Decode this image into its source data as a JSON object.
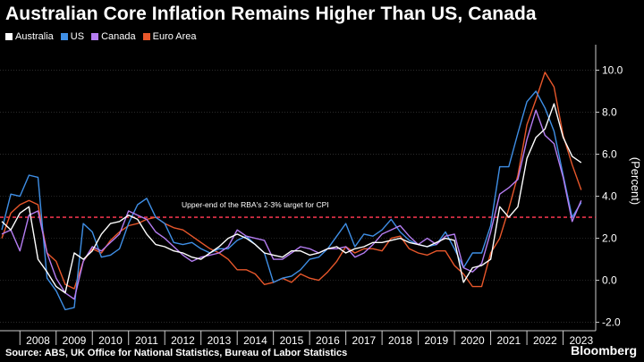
{
  "title": "Australian Core Inflation Remains Higher Than US, Canada",
  "source": "Source: ABS, UK Office for National Statistics, Bureau of Labor Statistics",
  "brand": "Bloomberg",
  "colors": {
    "background": "#000000",
    "australia": "#ffffff",
    "us": "#3f8fe6",
    "canada": "#b57df2",
    "euro_area": "#e8572b",
    "target_line": "#e8334a",
    "grid": "#3a3a3a"
  },
  "chart_data": {
    "type": "line",
    "ylabel": "(Percent)",
    "ylim": [
      -2.4,
      11
    ],
    "yticks": [
      -2,
      0,
      2,
      4,
      6,
      8,
      10
    ],
    "ytick_labels": [
      "-2.0",
      "0.0",
      "2.0",
      "4.0",
      "6.0",
      "8.0",
      "10.0"
    ],
    "xlim": [
      2007.45,
      2023.9
    ],
    "xtick_labels": [
      "2008",
      "2009",
      "2010",
      "2011",
      "2012",
      "2013",
      "2014",
      "2015",
      "2016",
      "2017",
      "2018",
      "2019",
      "2020",
      "2021",
      "2022",
      "2023"
    ],
    "grid": "horizontal",
    "legend_position": "top-left",
    "annotation": {
      "text": "Upper-end of the RBA's 2-3% target for CPI",
      "y": 3
    },
    "series": [
      {
        "name": "Australia",
        "color": "#ffffff",
        "x": [
          2007.5,
          2007.75,
          2008.0,
          2008.25,
          2008.5,
          2008.75,
          2009.0,
          2009.25,
          2009.5,
          2009.75,
          2010.0,
          2010.25,
          2010.5,
          2010.75,
          2011.0,
          2011.25,
          2011.5,
          2011.75,
          2012.0,
          2012.25,
          2012.5,
          2012.75,
          2013.0,
          2013.25,
          2013.5,
          2013.75,
          2014.0,
          2014.25,
          2014.5,
          2014.75,
          2015.0,
          2015.25,
          2015.5,
          2015.75,
          2016.0,
          2016.25,
          2016.5,
          2016.75,
          2017.0,
          2017.25,
          2017.5,
          2017.75,
          2018.0,
          2018.25,
          2018.5,
          2018.75,
          2019.0,
          2019.25,
          2019.5,
          2019.75,
          2020.0,
          2020.25,
          2020.5,
          2020.75,
          2021.0,
          2021.25,
          2021.5,
          2021.75,
          2022.0,
          2022.25,
          2022.5,
          2022.75,
          2023.0,
          2023.25,
          2023.5
        ],
        "values": [
          2.8,
          2.4,
          3.2,
          3.5,
          1.0,
          0.4,
          -0.3,
          -0.6,
          1.3,
          1.0,
          1.4,
          2.2,
          2.7,
          2.8,
          3.1,
          2.9,
          2.2,
          1.7,
          1.6,
          1.4,
          1.3,
          1.1,
          1.0,
          1.3,
          1.6,
          2.0,
          2.2,
          2.0,
          1.7,
          1.3,
          1.2,
          1.1,
          1.4,
          1.4,
          1.2,
          1.3,
          1.5,
          1.6,
          1.3,
          1.5,
          1.6,
          1.8,
          1.8,
          1.9,
          2.0,
          1.8,
          1.7,
          1.6,
          1.8,
          2.0,
          1.9,
          -0.1,
          0.6,
          0.7,
          1.0,
          3.5,
          3.0,
          3.5,
          5.8,
          6.8,
          7.2,
          8.4,
          6.8,
          5.9,
          5.6
        ]
      },
      {
        "name": "US",
        "color": "#3f8fe6",
        "x": [
          2007.5,
          2007.75,
          2008.0,
          2008.25,
          2008.5,
          2008.75,
          2009.0,
          2009.25,
          2009.5,
          2009.75,
          2010.0,
          2010.25,
          2010.5,
          2010.75,
          2011.0,
          2011.25,
          2011.5,
          2011.75,
          2012.0,
          2012.25,
          2012.5,
          2012.75,
          2013.0,
          2013.25,
          2013.5,
          2013.75,
          2014.0,
          2014.25,
          2014.5,
          2014.75,
          2015.0,
          2015.25,
          2015.5,
          2015.75,
          2016.0,
          2016.25,
          2016.5,
          2016.75,
          2017.0,
          2017.25,
          2017.5,
          2017.75,
          2018.0,
          2018.25,
          2018.5,
          2018.75,
          2019.0,
          2019.25,
          2019.5,
          2019.75,
          2020.0,
          2020.25,
          2020.5,
          2020.75,
          2021.0,
          2021.25,
          2021.5,
          2021.75,
          2022.0,
          2022.25,
          2022.5,
          2022.75,
          2023.0,
          2023.25,
          2023.5
        ],
        "values": [
          2.4,
          4.1,
          4.0,
          5.0,
          4.9,
          0.1,
          -0.5,
          -1.4,
          -1.3,
          2.7,
          2.3,
          1.1,
          1.2,
          1.5,
          2.7,
          3.6,
          3.9,
          3.0,
          2.7,
          1.8,
          1.7,
          1.8,
          1.5,
          1.3,
          1.5,
          1.5,
          1.9,
          2.1,
          1.7,
          1.3,
          -0.1,
          0.1,
          0.2,
          0.5,
          1.0,
          1.1,
          1.5,
          2.1,
          2.7,
          1.6,
          2.2,
          2.1,
          2.4,
          2.9,
          2.3,
          1.9,
          1.7,
          1.6,
          1.7,
          2.3,
          1.5,
          0.6,
          1.3,
          1.3,
          2.6,
          5.4,
          5.4,
          7.0,
          8.5,
          9.0,
          8.2,
          7.1,
          5.0,
          3.0,
          3.7
        ]
      },
      {
        "name": "Canada",
        "color": "#b57df2",
        "x": [
          2007.5,
          2007.75,
          2008.0,
          2008.25,
          2008.5,
          2008.75,
          2009.0,
          2009.25,
          2009.5,
          2009.75,
          2010.0,
          2010.25,
          2010.5,
          2010.75,
          2011.0,
          2011.25,
          2011.5,
          2011.75,
          2012.0,
          2012.25,
          2012.5,
          2012.75,
          2013.0,
          2013.25,
          2013.5,
          2013.75,
          2014.0,
          2014.25,
          2014.5,
          2014.75,
          2015.0,
          2015.25,
          2015.5,
          2015.75,
          2016.0,
          2016.25,
          2016.5,
          2016.75,
          2017.0,
          2017.25,
          2017.5,
          2017.75,
          2018.0,
          2018.25,
          2018.5,
          2018.75,
          2019.0,
          2019.25,
          2019.5,
          2019.75,
          2020.0,
          2020.25,
          2020.5,
          2020.75,
          2021.0,
          2021.25,
          2021.5,
          2021.75,
          2022.0,
          2022.25,
          2022.5,
          2022.75,
          2023.0,
          2023.25,
          2023.5
        ],
        "values": [
          2.2,
          2.4,
          1.4,
          3.1,
          3.3,
          1.3,
          0.1,
          -0.6,
          -0.9,
          0.9,
          1.6,
          1.4,
          1.8,
          2.2,
          3.3,
          3.1,
          2.9,
          2.3,
          2.0,
          1.6,
          1.2,
          0.9,
          1.1,
          1.2,
          1.3,
          1.6,
          2.4,
          2.1,
          2.0,
          1.9,
          1.0,
          1.0,
          1.3,
          1.6,
          1.5,
          1.3,
          1.5,
          1.5,
          1.6,
          1.1,
          1.3,
          1.7,
          2.2,
          2.4,
          2.6,
          2.1,
          1.7,
          2.0,
          1.7,
          2.1,
          2.2,
          0.6,
          0.4,
          0.8,
          2.3,
          4.1,
          4.4,
          4.8,
          6.7,
          8.1,
          6.9,
          6.5,
          4.9,
          2.8,
          3.8
        ]
      },
      {
        "name": "Euro Area",
        "color": "#e8572b",
        "x": [
          2007.5,
          2007.75,
          2008.0,
          2008.25,
          2008.5,
          2008.75,
          2009.0,
          2009.25,
          2009.5,
          2009.75,
          2010.0,
          2010.25,
          2010.5,
          2010.75,
          2011.0,
          2011.25,
          2011.5,
          2011.75,
          2012.0,
          2012.25,
          2012.5,
          2012.75,
          2013.0,
          2013.25,
          2013.5,
          2013.75,
          2014.0,
          2014.25,
          2014.5,
          2014.75,
          2015.0,
          2015.25,
          2015.5,
          2015.75,
          2016.0,
          2016.25,
          2016.5,
          2016.75,
          2017.0,
          2017.25,
          2017.5,
          2017.75,
          2018.0,
          2018.25,
          2018.5,
          2018.75,
          2019.0,
          2019.25,
          2019.5,
          2019.75,
          2020.0,
          2020.25,
          2020.5,
          2020.75,
          2021.0,
          2021.25,
          2021.5,
          2021.75,
          2022.0,
          2022.25,
          2022.5,
          2022.75,
          2023.0,
          2023.25,
          2023.5
        ],
        "values": [
          2.0,
          3.2,
          3.6,
          3.8,
          3.6,
          1.3,
          0.9,
          -0.2,
          -0.4,
          0.9,
          1.5,
          1.3,
          1.9,
          2.3,
          2.6,
          2.7,
          2.9,
          3.0,
          2.7,
          2.5,
          2.4,
          2.1,
          1.8,
          1.5,
          1.3,
          1.0,
          0.5,
          0.5,
          0.3,
          -0.2,
          -0.1,
          0.1,
          -0.1,
          0.3,
          0.1,
          0.0,
          0.4,
          0.9,
          1.6,
          1.3,
          1.5,
          1.5,
          1.4,
          2.0,
          2.1,
          1.5,
          1.3,
          1.2,
          1.4,
          1.4,
          0.7,
          0.3,
          -0.3,
          -0.3,
          1.3,
          2.0,
          3.4,
          5.0,
          7.4,
          8.6,
          9.9,
          9.2,
          6.9,
          5.5,
          4.3
        ]
      }
    ]
  }
}
